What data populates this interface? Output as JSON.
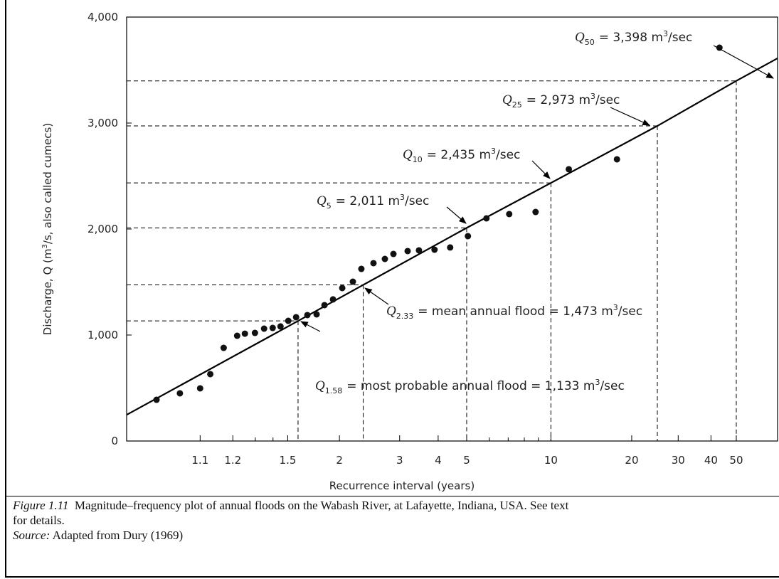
{
  "chart_data": {
    "type": "scatter",
    "x_scale": "gumbel",
    "color": "#111111",
    "ylabel": {
      "text": "Discharge, Q (m",
      "superscript": "3",
      "rest": "/s, also called cumecs)"
    },
    "xlabel": "Recurrence interval (years)",
    "xlim": [
      1.01,
      72
    ],
    "ylim": [
      0,
      4000
    ],
    "xticks": [
      1.1,
      1.2,
      1.5,
      2,
      3,
      4,
      5,
      10,
      20,
      30,
      40,
      50
    ],
    "xminor_ticks": [
      1.3,
      1.4,
      6,
      7,
      8,
      9
    ],
    "yticks": [
      0,
      {
        "value": 1000,
        "label": "1,000"
      },
      {
        "value": 2000,
        "label": "2,000"
      },
      {
        "value": 3000,
        "label": "3,000"
      },
      {
        "value": 4000,
        "label": "4,000"
      }
    ],
    "x": [
      1.03,
      1.06,
      1.1,
      1.126,
      1.167,
      1.217,
      1.25,
      1.298,
      1.347,
      1.398,
      1.449,
      1.504,
      1.564,
      1.66,
      1.747,
      1.828,
      1.923,
      2.035,
      2.177,
      2.301,
      2.496,
      2.701,
      2.869,
      3.18,
      3.458,
      3.89,
      4.39,
      5.05,
      5.86,
      7.06,
      8.79,
      11.64,
      17.6,
      43.1
    ],
    "values": [
      389,
      450,
      497,
      631,
      879,
      993,
      1013,
      1020,
      1060,
      1067,
      1081,
      1134,
      1168,
      1188,
      1195,
      1282,
      1336,
      1443,
      1503,
      1624,
      1678,
      1718,
      1765,
      1792,
      1799,
      1805,
      1826,
      1933,
      2101,
      2141,
      2161,
      2564,
      2658,
      3711
    ],
    "annotations": [
      {
        "x": 50,
        "y": 3398,
        "symbol": "Q",
        "subscript": "50",
        "text": "= 3,398 m",
        "superscript": "3",
        "unit": "/sec"
      },
      {
        "x": 25,
        "y": 2973,
        "symbol": "Q",
        "subscript": "25",
        "text": "= 2,973 m",
        "superscript": "3",
        "unit": "/sec"
      },
      {
        "x": 10,
        "y": 2435,
        "symbol": "Q",
        "subscript": "10",
        "text": "= 2,435 m",
        "superscript": "3",
        "unit": "/sec"
      },
      {
        "x": 5,
        "y": 2011,
        "symbol": "Q",
        "subscript": "5",
        "text": "= 2,011 m",
        "superscript": "3",
        "unit": "/sec"
      },
      {
        "x": 2.33,
        "y": 1473,
        "symbol": "Q",
        "subscript": "2.33",
        "text": "= mean annual flood = 1,473 m",
        "superscript": "3",
        "unit": "/sec"
      },
      {
        "x": 1.58,
        "y": 1133,
        "symbol": "Q",
        "subscript": "1.58",
        "text": "= most probable annual flood = 1,133 m",
        "superscript": "3",
        "unit": "/sec"
      }
    ],
    "caption": {
      "label": "Figure 1.11",
      "lines": [
        "Magnitude–frequency plot of annual floods on the Wabash River, at Lafayette, Indiana, USA. See text",
        "for details."
      ]
    },
    "source": {
      "label": "Source:",
      "text": "Adapted from Dury (1969)"
    }
  }
}
